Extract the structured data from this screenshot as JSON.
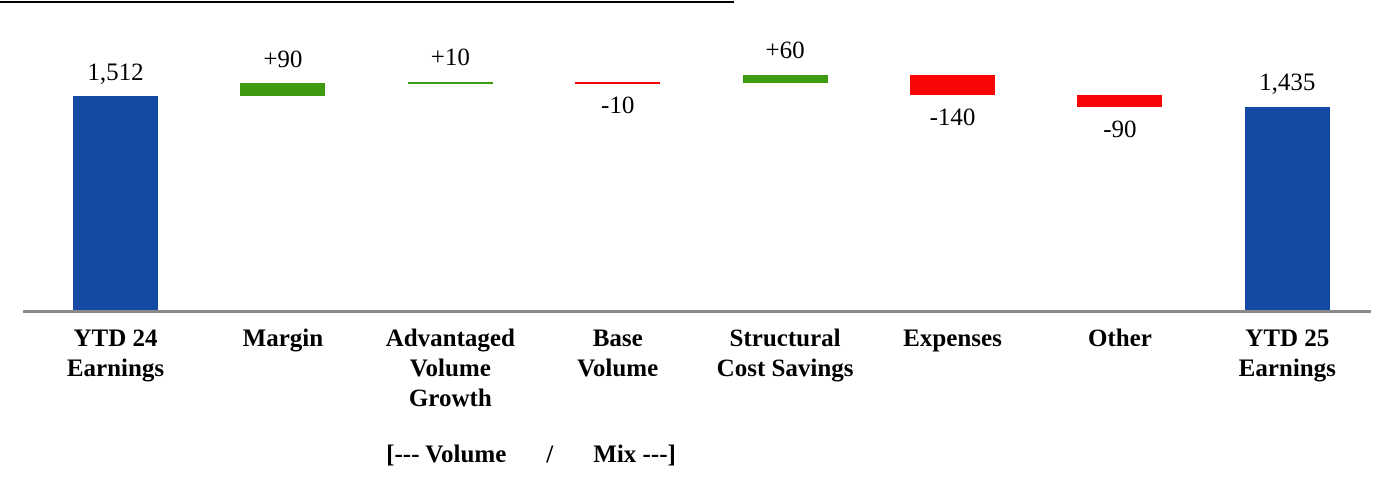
{
  "chart_data": {
    "type": "waterfall",
    "title": "",
    "orientation": "vertical",
    "grid": false,
    "legend": false,
    "baseline_axis_color": "#8a8a8a",
    "colors": {
      "total": "#1549a3",
      "increase": "#3e9b10",
      "decrease": "#fa0505"
    },
    "items": [
      {
        "label": "YTD 24 Earnings",
        "label_lines": [
          "YTD 24",
          "Earnings"
        ],
        "kind": "total",
        "value": 1512,
        "display": "1,512"
      },
      {
        "label": "Margin",
        "label_lines": [
          "Margin"
        ],
        "kind": "delta",
        "value": 90,
        "display": "+90"
      },
      {
        "label": "Advantaged Volume Growth",
        "label_lines": [
          "Advantaged",
          "Volume",
          "Growth"
        ],
        "kind": "delta",
        "value": 10,
        "display": "+10"
      },
      {
        "label": "Base Volume",
        "label_lines": [
          "Base",
          "Volume"
        ],
        "kind": "delta",
        "value": -10,
        "display": "-10"
      },
      {
        "label": "Structural Cost Savings",
        "label_lines": [
          "Structural",
          "Cost Savings"
        ],
        "kind": "delta",
        "value": 60,
        "display": "+60"
      },
      {
        "label": "Expenses",
        "label_lines": [
          "Expenses"
        ],
        "kind": "delta",
        "value": -140,
        "display": "-140"
      },
      {
        "label": "Other",
        "label_lines": [
          "Other"
        ],
        "kind": "delta",
        "value": -90,
        "display": "-90"
      },
      {
        "label": "YTD 25 Earnings",
        "label_lines": [
          "YTD 25",
          "Earnings"
        ],
        "kind": "total",
        "value": 1435,
        "display": "1,435"
      }
    ],
    "annotation": {
      "left": "[--- Volume",
      "separator": "/",
      "right": "Mix ---]"
    }
  }
}
